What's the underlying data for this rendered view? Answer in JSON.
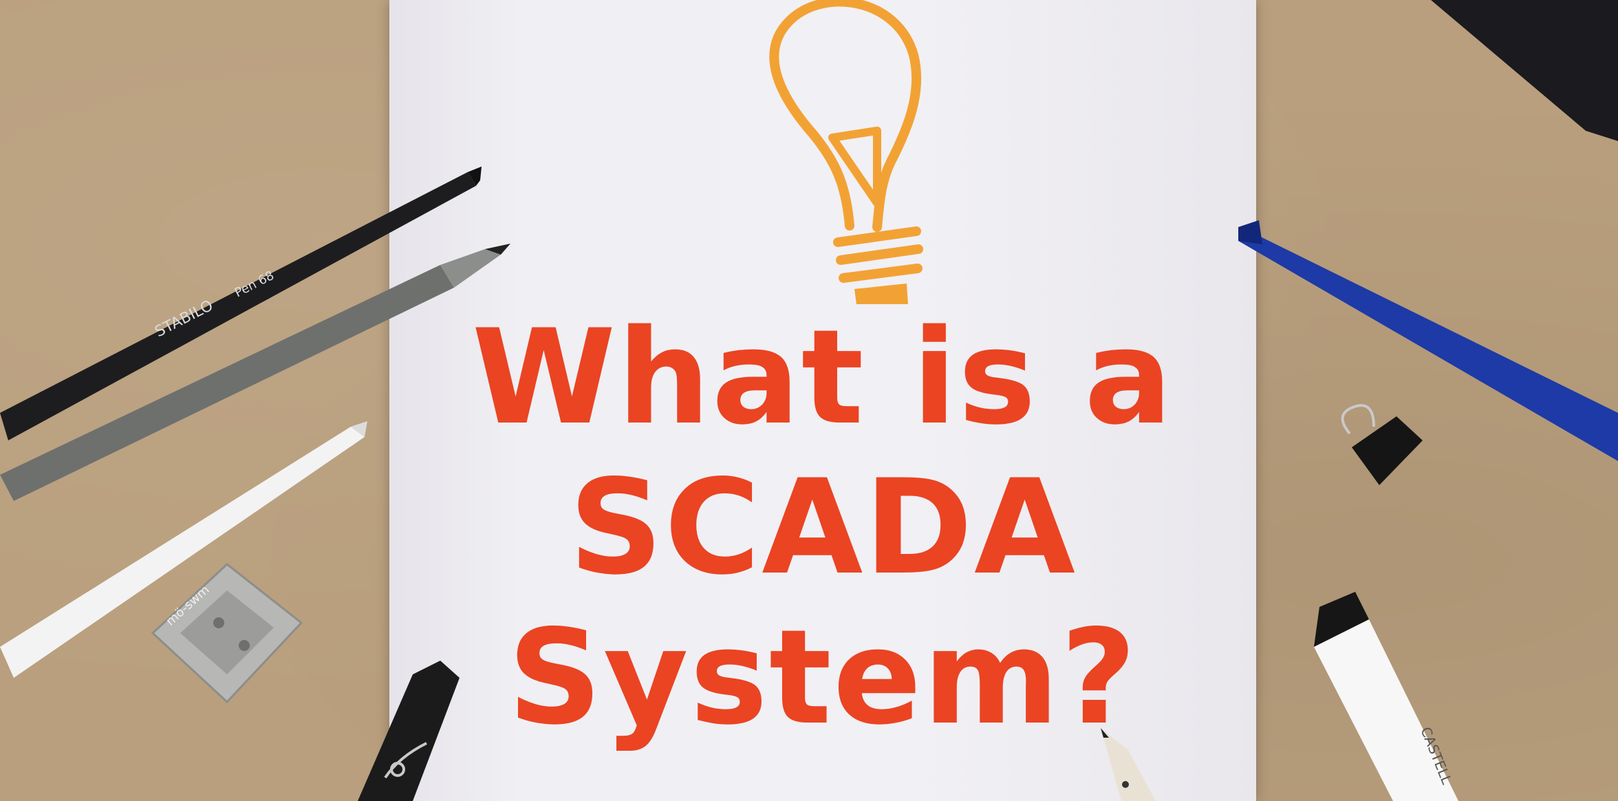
{
  "headline": {
    "line1": "What is a",
    "line2": "SCADA",
    "line3": "System?"
  },
  "pen_labels": {
    "stabilo": "STABILO",
    "model": "Pen 68",
    "sharpener": "mö-swm",
    "marker": "CASTELL"
  },
  "colors": {
    "headline": "#ea4423",
    "bulb": "#f2a234",
    "desk": "#b99f7d",
    "paper": "#f1f0f4"
  }
}
